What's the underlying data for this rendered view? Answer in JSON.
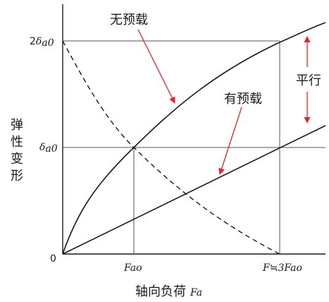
{
  "labels": {
    "no_preload": "无预载",
    "with_preload": "有预载",
    "parallel": "平行",
    "ylabel_chars": [
      "弹",
      "性",
      "变",
      "形"
    ],
    "xlabel_cn": "轴向负荷",
    "xlabel_var": "Fa",
    "origin": "0",
    "tick_fao": "Fao",
    "tick_f_prefix": "F",
    "tick_f_approx": "≒",
    "tick_3fao": "3Fao",
    "tick_delta": "δ",
    "tick_a0": "a0",
    "tick_two": "2"
  },
  "colors": {
    "curve": "#1a1a1a",
    "grid": "#555555",
    "arrow": "#e8222b"
  }
}
